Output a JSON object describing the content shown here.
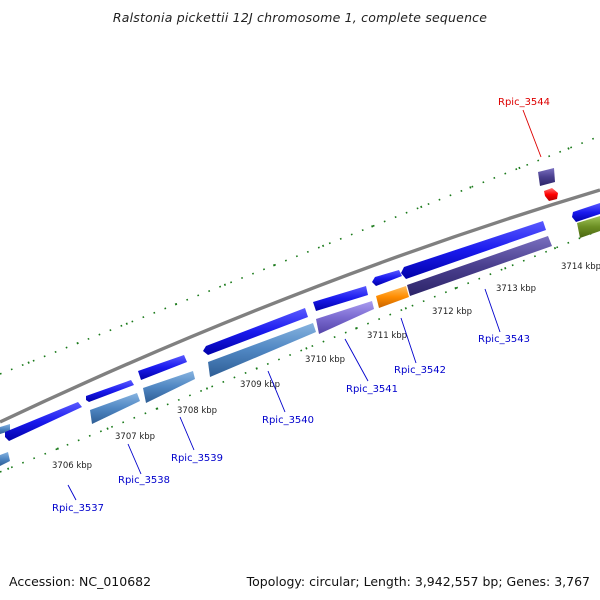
{
  "title": "Ralstonia pickettii 12J chromosome 1, complete sequence",
  "footer": {
    "accession": "Accession: NC_010682",
    "topology": "Topology: circular; Length: 3,942,557 bp; Genes: 3,767"
  },
  "ticks": [
    "3706 kbp",
    "3707 kbp",
    "3708 kbp",
    "3709 kbp",
    "3710 kbp",
    "3711 kbp",
    "3712 kbp",
    "3713 kbp",
    "3714 kbp"
  ],
  "genes": [
    {
      "id": "Rpic_3537",
      "color": "#0000dd"
    },
    {
      "id": "Rpic_3538",
      "color": "#0000dd"
    },
    {
      "id": "Rpic_3539",
      "color": "#0000dd"
    },
    {
      "id": "Rpic_3540",
      "color": "#0000dd"
    },
    {
      "id": "Rpic_3541",
      "color": "#0000dd"
    },
    {
      "id": "Rpic_3542",
      "color": "#0000dd"
    },
    {
      "id": "Rpic_3543",
      "color": "#0000dd"
    },
    {
      "id": "Rpic_3544",
      "color": "#dd0000"
    }
  ],
  "colors": {
    "cds": "#1a1aee",
    "cog_steelblue": "#4f86c2",
    "cog_slate": "#4a3f8e",
    "cog_lavender": "#7a6ad0",
    "cog_orange": "#ff8c00",
    "cog_olive": "#6b8e23",
    "rna": "#ff0000",
    "backbone": "#808080",
    "tick": "#1a7a1a"
  }
}
